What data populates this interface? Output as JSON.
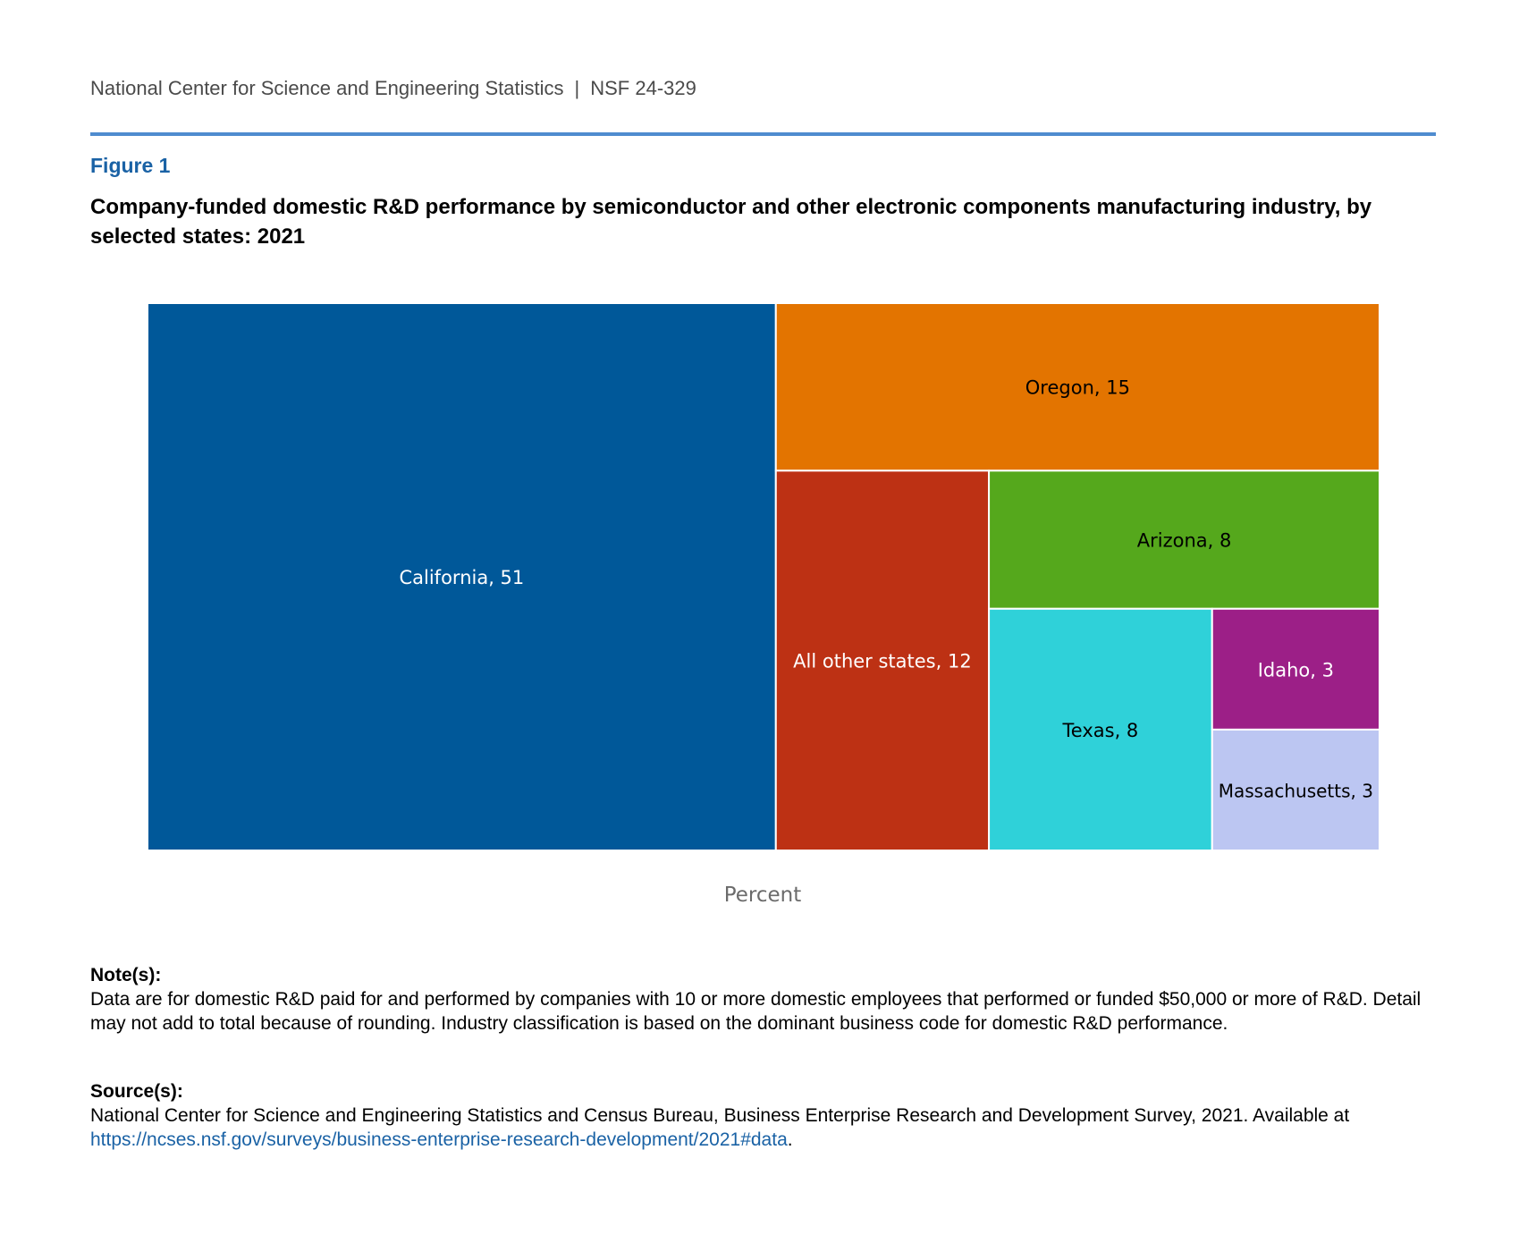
{
  "header": {
    "org": "National Center for Science and Engineering Statistics",
    "separator": "|",
    "report_id": "NSF 24-329"
  },
  "figure": {
    "label": "Figure 1",
    "title": "Company-funded domestic R&D performance by semiconductor and other electronic components manufacturing industry, by selected states: 2021"
  },
  "colors": {
    "rule": "#4f8ccf",
    "California": "#005899",
    "Oregon": "#e37400",
    "All other states": "#bd3114",
    "Arizona": "#55a81c",
    "Texas": "#2fd1d9",
    "Idaho": "#9c1f87",
    "Massachusetts": "#bcc6f2"
  },
  "chart_data": {
    "type": "treemap",
    "unit_label": "Percent",
    "items": [
      {
        "name": "California",
        "value": 51,
        "label": "California, 51",
        "label_color": "#ffffff"
      },
      {
        "name": "Oregon",
        "value": 15,
        "label": "Oregon, 15",
        "label_color": "#000000"
      },
      {
        "name": "All other states",
        "value": 12,
        "label": "All other states, 12",
        "label_color": "#ffffff"
      },
      {
        "name": "Arizona",
        "value": 8,
        "label": "Arizona, 8",
        "label_color": "#000000"
      },
      {
        "name": "Texas",
        "value": 8,
        "label": "Texas, 8",
        "label_color": "#000000"
      },
      {
        "name": "Idaho",
        "value": 3,
        "label": "Idaho, 3",
        "label_color": "#ffffff"
      },
      {
        "name": "Massachusetts",
        "value": 3,
        "label": "Massachusetts, 3",
        "label_color": "#000000"
      }
    ]
  },
  "notes": {
    "heading": "Note(s):",
    "text": "Data are for domestic R&D paid for and performed by companies with 10 or more domestic employees that performed or funded $50,000 or more of R&D. Detail may not add to total because of rounding. Industry classification is based on the dominant business code for domestic R&D performance."
  },
  "sources": {
    "heading": "Source(s):",
    "text": "National Center for Science and Engineering Statistics and Census Bureau, Business Enterprise Research and Development Survey, 2021. Available at",
    "link": "https://ncses.nsf.gov/surveys/business-enterprise-research-development/2021#data",
    "end": "."
  }
}
